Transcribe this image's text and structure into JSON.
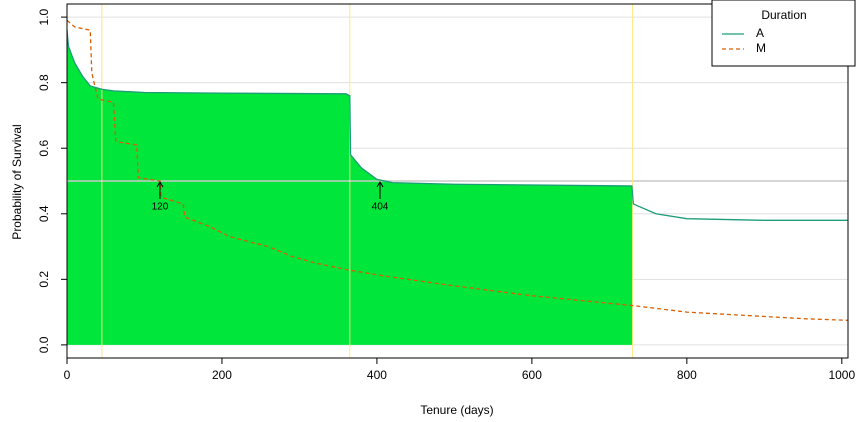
{
  "chart_data": {
    "type": "line",
    "x_label": "Tenure (days)",
    "y_label": "Probability of Survival",
    "xlim": [
      0,
      1008
    ],
    "ylim": [
      -0.04,
      1.04
    ],
    "xticks": [
      0,
      200,
      400,
      600,
      800,
      1000
    ],
    "yticks": [
      {
        "value": 0,
        "label": "0.0"
      },
      {
        "value": 0.2,
        "label": "0.2"
      },
      {
        "value": 0.4,
        "label": "0.4"
      },
      {
        "value": 0.6,
        "label": "0.6"
      },
      {
        "value": 0.8,
        "label": "0.8"
      },
      {
        "value": 1,
        "label": "1.0"
      }
    ],
    "grid": true,
    "vlines": [
      45,
      365,
      730
    ],
    "vline_color": "#ffe680",
    "hline": 0.5,
    "fill_color": "#00e63a",
    "legend_title": "Duration",
    "legend_position": "top-right",
    "series": [
      {
        "name": "A",
        "color": "#1b9e77",
        "dash": false,
        "x": [
          0,
          2,
          10,
          20,
          30,
          45,
          60,
          100,
          200,
          360,
          365,
          366,
          380,
          400,
          420,
          500,
          729,
          731,
          760,
          800,
          900,
          1008
        ],
        "values": [
          0.96,
          0.91,
          0.86,
          0.82,
          0.79,
          0.78,
          0.775,
          0.77,
          0.768,
          0.766,
          0.76,
          0.58,
          0.54,
          0.505,
          0.495,
          0.49,
          0.485,
          0.43,
          0.4,
          0.385,
          0.38,
          0.38
        ]
      },
      {
        "name": "M",
        "color": "#d95f02",
        "dash": true,
        "x": [
          0,
          10,
          30,
          32,
          40,
          60,
          63,
          90,
          92,
          120,
          122,
          150,
          152,
          185,
          210,
          260,
          290,
          320,
          360,
          410,
          500,
          600,
          730,
          800,
          950,
          1008
        ],
        "values": [
          0.99,
          0.97,
          0.96,
          0.83,
          0.75,
          0.74,
          0.62,
          0.61,
          0.51,
          0.5,
          0.45,
          0.43,
          0.39,
          0.36,
          0.33,
          0.3,
          0.27,
          0.25,
          0.23,
          0.21,
          0.18,
          0.15,
          0.12,
          0.1,
          0.08,
          0.075
        ]
      }
    ],
    "annotations": [
      {
        "text": "120",
        "x": 120,
        "y": 0.5
      },
      {
        "text": "404",
        "x": 404,
        "y": 0.5
      }
    ]
  }
}
